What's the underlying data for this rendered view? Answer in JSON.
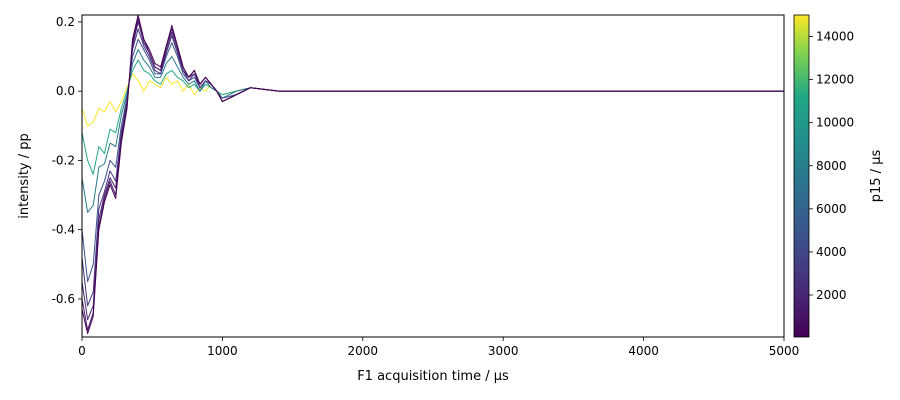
{
  "chart_data": {
    "type": "line",
    "title": "",
    "xlabel": "F1 acquisition time / μs",
    "ylabel": "intensity / pp",
    "xlim": [
      0,
      5000
    ],
    "ylim": [
      -0.71,
      0.22
    ],
    "xticks": [
      0,
      1000,
      2000,
      3000,
      4000,
      5000
    ],
    "yticks": [
      -0.6,
      -0.4,
      -0.2,
      0.0,
      0.2
    ],
    "grid": false,
    "colormap": "viridis",
    "colorbar": {
      "label": "p15 / μs",
      "range": [
        50,
        15000
      ],
      "ticks": [
        2000,
        4000,
        6000,
        8000,
        10000,
        12000,
        14000
      ]
    },
    "series": [
      {
        "p15": 15000,
        "color": "#fde725",
        "points": [
          [
            0,
            -0.05
          ],
          [
            40,
            -0.1
          ],
          [
            80,
            -0.09
          ],
          [
            120,
            -0.05
          ],
          [
            160,
            -0.06
          ],
          [
            200,
            -0.03
          ],
          [
            240,
            -0.06
          ],
          [
            280,
            -0.03
          ],
          [
            320,
            0.01
          ],
          [
            360,
            0.05
          ],
          [
            400,
            0.03
          ],
          [
            440,
            0.0
          ],
          [
            480,
            0.03
          ],
          [
            520,
            0.02
          ],
          [
            560,
            0.01
          ],
          [
            600,
            0.04
          ],
          [
            640,
            0.02
          ],
          [
            680,
            0.03
          ],
          [
            720,
            0.0
          ],
          [
            760,
            0.02
          ],
          [
            800,
            -0.01
          ],
          [
            840,
            0.01
          ],
          [
            880,
            0.0
          ],
          [
            920,
            0.02
          ],
          [
            960,
            0.0
          ],
          [
            1000,
            -0.01
          ],
          [
            1100,
            0.0
          ],
          [
            1200,
            0.01
          ],
          [
            1400,
            0.0
          ],
          [
            1600,
            0.0
          ],
          [
            2000,
            0.0
          ],
          [
            2500,
            0.0
          ],
          [
            3000,
            0.0
          ],
          [
            3500,
            0.0
          ],
          [
            4000,
            0.0
          ],
          [
            4500,
            0.0
          ],
          [
            5000,
            0.0
          ]
        ]
      },
      {
        "p15": 10500,
        "color": "#22a884",
        "points": [
          [
            0,
            -0.12
          ],
          [
            40,
            -0.2
          ],
          [
            80,
            -0.24
          ],
          [
            120,
            -0.16
          ],
          [
            160,
            -0.18
          ],
          [
            200,
            -0.11
          ],
          [
            240,
            -0.12
          ],
          [
            280,
            -0.05
          ],
          [
            320,
            0.0
          ],
          [
            360,
            0.06
          ],
          [
            400,
            0.09
          ],
          [
            440,
            0.06
          ],
          [
            480,
            0.05
          ],
          [
            520,
            0.03
          ],
          [
            560,
            0.02
          ],
          [
            600,
            0.05
          ],
          [
            640,
            0.06
          ],
          [
            680,
            0.04
          ],
          [
            720,
            0.03
          ],
          [
            760,
            0.01
          ],
          [
            800,
            0.02
          ],
          [
            840,
            0.0
          ],
          [
            880,
            0.02
          ],
          [
            920,
            0.01
          ],
          [
            960,
            0.0
          ],
          [
            1000,
            -0.01
          ],
          [
            1100,
            0.0
          ],
          [
            1200,
            0.01
          ],
          [
            1400,
            0.0
          ],
          [
            1600,
            0.0
          ],
          [
            2000,
            0.0
          ],
          [
            2500,
            0.0
          ],
          [
            3000,
            0.0
          ],
          [
            3500,
            0.0
          ],
          [
            4000,
            0.0
          ],
          [
            4500,
            0.0
          ],
          [
            5000,
            0.0
          ]
        ]
      },
      {
        "p15": 7500,
        "color": "#2a788e",
        "points": [
          [
            0,
            -0.25
          ],
          [
            40,
            -0.35
          ],
          [
            80,
            -0.33
          ],
          [
            120,
            -0.22
          ],
          [
            160,
            -0.21
          ],
          [
            200,
            -0.15
          ],
          [
            240,
            -0.16
          ],
          [
            280,
            -0.07
          ],
          [
            320,
            -0.01
          ],
          [
            360,
            0.08
          ],
          [
            400,
            0.12
          ],
          [
            440,
            0.09
          ],
          [
            480,
            0.07
          ],
          [
            520,
            0.04
          ],
          [
            560,
            0.04
          ],
          [
            600,
            0.08
          ],
          [
            640,
            0.1
          ],
          [
            680,
            0.07
          ],
          [
            720,
            0.04
          ],
          [
            760,
            0.02
          ],
          [
            800,
            0.03
          ],
          [
            840,
            0.0
          ],
          [
            880,
            0.03
          ],
          [
            920,
            0.01
          ],
          [
            960,
            0.0
          ],
          [
            1000,
            -0.02
          ],
          [
            1100,
            0.0
          ],
          [
            1200,
            0.01
          ],
          [
            1400,
            0.0
          ],
          [
            1600,
            0.0
          ],
          [
            2000,
            0.0
          ],
          [
            2500,
            0.0
          ],
          [
            3000,
            0.0
          ],
          [
            3500,
            0.0
          ],
          [
            4000,
            0.0
          ],
          [
            4500,
            0.0
          ],
          [
            5000,
            0.0
          ]
        ]
      },
      {
        "p15": 4000,
        "color": "#3b518b",
        "points": [
          [
            0,
            -0.4
          ],
          [
            40,
            -0.55
          ],
          [
            80,
            -0.5
          ],
          [
            120,
            -0.3
          ],
          [
            160,
            -0.26
          ],
          [
            200,
            -0.2
          ],
          [
            240,
            -0.22
          ],
          [
            280,
            -0.1
          ],
          [
            320,
            -0.02
          ],
          [
            360,
            0.1
          ],
          [
            400,
            0.15
          ],
          [
            440,
            0.12
          ],
          [
            480,
            0.09
          ],
          [
            520,
            0.05
          ],
          [
            560,
            0.05
          ],
          [
            600,
            0.1
          ],
          [
            640,
            0.14
          ],
          [
            680,
            0.1
          ],
          [
            720,
            0.05
          ],
          [
            760,
            0.03
          ],
          [
            800,
            0.04
          ],
          [
            840,
            0.01
          ],
          [
            880,
            0.03
          ],
          [
            920,
            0.02
          ],
          [
            960,
            0.0
          ],
          [
            1000,
            -0.02
          ],
          [
            1100,
            -0.01
          ],
          [
            1200,
            0.01
          ],
          [
            1400,
            0.0
          ],
          [
            1600,
            0.0
          ],
          [
            2000,
            0.0
          ],
          [
            2500,
            0.0
          ],
          [
            3000,
            0.0
          ],
          [
            3500,
            0.0
          ],
          [
            4000,
            0.0
          ],
          [
            4500,
            0.0
          ],
          [
            5000,
            0.0
          ]
        ]
      },
      {
        "p15": 2000,
        "color": "#46307e",
        "points": [
          [
            0,
            -0.48
          ],
          [
            40,
            -0.62
          ],
          [
            80,
            -0.58
          ],
          [
            120,
            -0.34
          ],
          [
            160,
            -0.29
          ],
          [
            200,
            -0.23
          ],
          [
            240,
            -0.26
          ],
          [
            280,
            -0.12
          ],
          [
            320,
            -0.03
          ],
          [
            360,
            0.12
          ],
          [
            400,
            0.18
          ],
          [
            440,
            0.13
          ],
          [
            480,
            0.1
          ],
          [
            520,
            0.06
          ],
          [
            560,
            0.05
          ],
          [
            600,
            0.11
          ],
          [
            640,
            0.16
          ],
          [
            680,
            0.11
          ],
          [
            720,
            0.06
          ],
          [
            760,
            0.03
          ],
          [
            800,
            0.05
          ],
          [
            840,
            0.01
          ],
          [
            880,
            0.03
          ],
          [
            920,
            0.02
          ],
          [
            960,
            0.0
          ],
          [
            1000,
            -0.03
          ],
          [
            1100,
            -0.01
          ],
          [
            1200,
            0.01
          ],
          [
            1400,
            0.0
          ],
          [
            1600,
            0.0
          ],
          [
            2000,
            0.0
          ],
          [
            2500,
            0.0
          ],
          [
            3000,
            0.0
          ],
          [
            3500,
            0.0
          ],
          [
            4000,
            0.0
          ],
          [
            4500,
            0.0
          ],
          [
            5000,
            0.0
          ]
        ]
      },
      {
        "p15": 1000,
        "color": "#482475",
        "points": [
          [
            0,
            -0.55
          ],
          [
            40,
            -0.66
          ],
          [
            80,
            -0.62
          ],
          [
            120,
            -0.37
          ],
          [
            160,
            -0.3
          ],
          [
            200,
            -0.25
          ],
          [
            240,
            -0.28
          ],
          [
            280,
            -0.13
          ],
          [
            320,
            -0.04
          ],
          [
            360,
            0.13
          ],
          [
            400,
            0.2
          ],
          [
            440,
            0.14
          ],
          [
            480,
            0.11
          ],
          [
            520,
            0.07
          ],
          [
            560,
            0.06
          ],
          [
            600,
            0.12
          ],
          [
            640,
            0.17
          ],
          [
            680,
            0.12
          ],
          [
            720,
            0.06
          ],
          [
            760,
            0.04
          ],
          [
            800,
            0.05
          ],
          [
            840,
            0.02
          ],
          [
            880,
            0.04
          ],
          [
            920,
            0.02
          ],
          [
            960,
            0.0
          ],
          [
            1000,
            -0.03
          ],
          [
            1100,
            -0.01
          ],
          [
            1200,
            0.01
          ],
          [
            1400,
            0.0
          ],
          [
            1600,
            0.0
          ],
          [
            2000,
            0.0
          ],
          [
            2500,
            0.0
          ],
          [
            3000,
            0.0
          ],
          [
            3500,
            0.0
          ],
          [
            4000,
            0.0
          ],
          [
            4500,
            0.0
          ],
          [
            5000,
            0.0
          ]
        ]
      },
      {
        "p15": 400,
        "color": "#471365",
        "points": [
          [
            0,
            -0.6
          ],
          [
            40,
            -0.69
          ],
          [
            80,
            -0.64
          ],
          [
            120,
            -0.39
          ],
          [
            160,
            -0.31
          ],
          [
            200,
            -0.26
          ],
          [
            240,
            -0.3
          ],
          [
            280,
            -0.14
          ],
          [
            320,
            -0.05
          ],
          [
            360,
            0.14
          ],
          [
            400,
            0.21
          ],
          [
            440,
            0.15
          ],
          [
            480,
            0.11
          ],
          [
            520,
            0.07
          ],
          [
            560,
            0.06
          ],
          [
            600,
            0.13
          ],
          [
            640,
            0.18
          ],
          [
            680,
            0.13
          ],
          [
            720,
            0.07
          ],
          [
            760,
            0.04
          ],
          [
            800,
            0.06
          ],
          [
            840,
            0.02
          ],
          [
            880,
            0.04
          ],
          [
            920,
            0.02
          ],
          [
            960,
            0.0
          ],
          [
            1000,
            -0.03
          ],
          [
            1100,
            -0.01
          ],
          [
            1200,
            0.01
          ],
          [
            1400,
            0.0
          ],
          [
            1600,
            0.0
          ],
          [
            2000,
            0.0
          ],
          [
            2500,
            0.0
          ],
          [
            3000,
            0.0
          ],
          [
            3500,
            0.0
          ],
          [
            4000,
            0.0
          ],
          [
            4500,
            0.0
          ],
          [
            5000,
            0.0
          ]
        ]
      },
      {
        "p15": 100,
        "color": "#440154",
        "points": [
          [
            0,
            -0.63
          ],
          [
            40,
            -0.7
          ],
          [
            80,
            -0.65
          ],
          [
            120,
            -0.4
          ],
          [
            160,
            -0.32
          ],
          [
            200,
            -0.27
          ],
          [
            240,
            -0.31
          ],
          [
            280,
            -0.15
          ],
          [
            320,
            -0.05
          ],
          [
            360,
            0.15
          ],
          [
            400,
            0.22
          ],
          [
            440,
            0.15
          ],
          [
            480,
            0.12
          ],
          [
            520,
            0.08
          ],
          [
            560,
            0.07
          ],
          [
            600,
            0.13
          ],
          [
            640,
            0.19
          ],
          [
            680,
            0.13
          ],
          [
            720,
            0.07
          ],
          [
            760,
            0.04
          ],
          [
            800,
            0.06
          ],
          [
            840,
            0.02
          ],
          [
            880,
            0.04
          ],
          [
            920,
            0.02
          ],
          [
            960,
            0.0
          ],
          [
            1000,
            -0.03
          ],
          [
            1100,
            -0.01
          ],
          [
            1200,
            0.01
          ],
          [
            1400,
            0.0
          ],
          [
            1600,
            0.0
          ],
          [
            2000,
            0.0
          ],
          [
            2500,
            0.0
          ],
          [
            3000,
            0.0
          ],
          [
            3500,
            0.0
          ],
          [
            4000,
            0.0
          ],
          [
            4500,
            0.0
          ],
          [
            5000,
            0.0
          ]
        ]
      }
    ]
  }
}
